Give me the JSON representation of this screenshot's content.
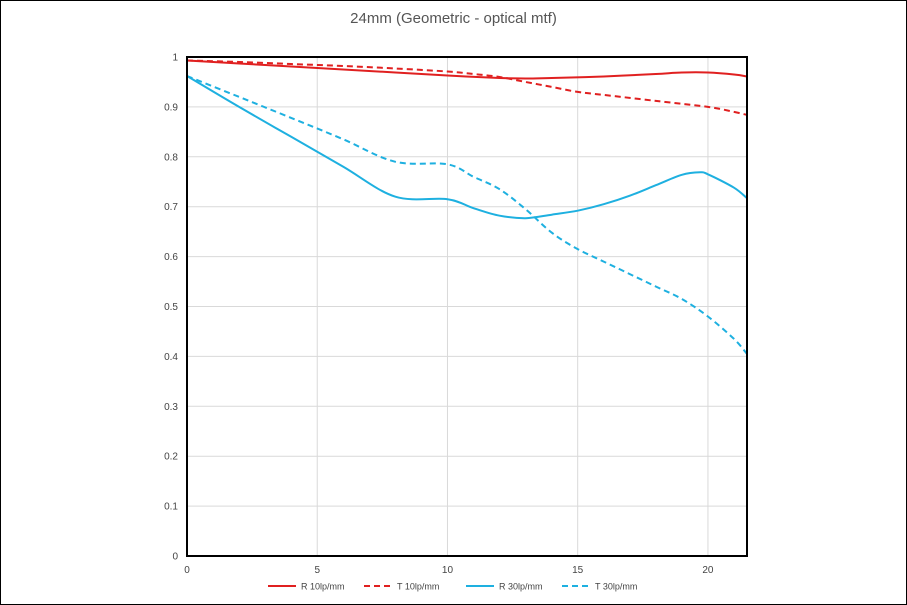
{
  "chart_data": {
    "type": "line",
    "title": "24mm  (Geometric - optical mtf)",
    "xlabel": "",
    "ylabel": "",
    "xlim": [
      0,
      21.5
    ],
    "ylim": [
      0,
      1
    ],
    "xticks": [
      "0",
      "5",
      "10",
      "15",
      "20"
    ],
    "yticks": [
      "0",
      "0.1",
      "0.2",
      "0.3",
      "0.4",
      "0.5",
      "0.6",
      "0.7",
      "0.8",
      "0.9",
      "1"
    ],
    "grid": true,
    "legend_position": "bottom",
    "series": [
      {
        "name": "R 10lp/mm",
        "color": "#e02020",
        "dash": false,
        "x": [
          0,
          2,
          4,
          6,
          8,
          10,
          12,
          13,
          14,
          16,
          18,
          19,
          20,
          21,
          21.5
        ],
        "y": [
          0.993,
          0.987,
          0.981,
          0.975,
          0.969,
          0.963,
          0.958,
          0.957,
          0.958,
          0.961,
          0.966,
          0.969,
          0.969,
          0.965,
          0.961
        ]
      },
      {
        "name": "T 10lp/mm",
        "color": "#e02020",
        "dash": true,
        "x": [
          0,
          2,
          4,
          6,
          8,
          10,
          11,
          12,
          13,
          14,
          15,
          16,
          18,
          20,
          21,
          21.5
        ],
        "y": [
          0.993,
          0.99,
          0.986,
          0.982,
          0.977,
          0.971,
          0.966,
          0.96,
          0.95,
          0.94,
          0.93,
          0.924,
          0.912,
          0.9,
          0.89,
          0.884
        ]
      },
      {
        "name": "R 30lp/mm",
        "color": "#1eb0e0",
        "dash": false,
        "x": [
          0,
          2,
          4,
          6,
          8,
          10,
          11,
          12,
          13,
          14,
          15,
          16,
          17,
          18,
          19,
          19.7,
          20,
          21,
          21.5
        ],
        "y": [
          0.962,
          0.9,
          0.84,
          0.78,
          0.72,
          0.715,
          0.697,
          0.682,
          0.677,
          0.684,
          0.692,
          0.705,
          0.722,
          0.743,
          0.764,
          0.769,
          0.765,
          0.738,
          0.717
        ]
      },
      {
        "name": "T 30lp/mm",
        "color": "#1eb0e0",
        "dash": true,
        "x": [
          0,
          2,
          4,
          6,
          8,
          10,
          11,
          12,
          13,
          14,
          15,
          16,
          17,
          18,
          19,
          20,
          21,
          21.5
        ],
        "y": [
          0.962,
          0.92,
          0.878,
          0.835,
          0.79,
          0.785,
          0.76,
          0.735,
          0.695,
          0.648,
          0.615,
          0.59,
          0.565,
          0.54,
          0.515,
          0.48,
          0.435,
          0.405
        ]
      }
    ]
  }
}
